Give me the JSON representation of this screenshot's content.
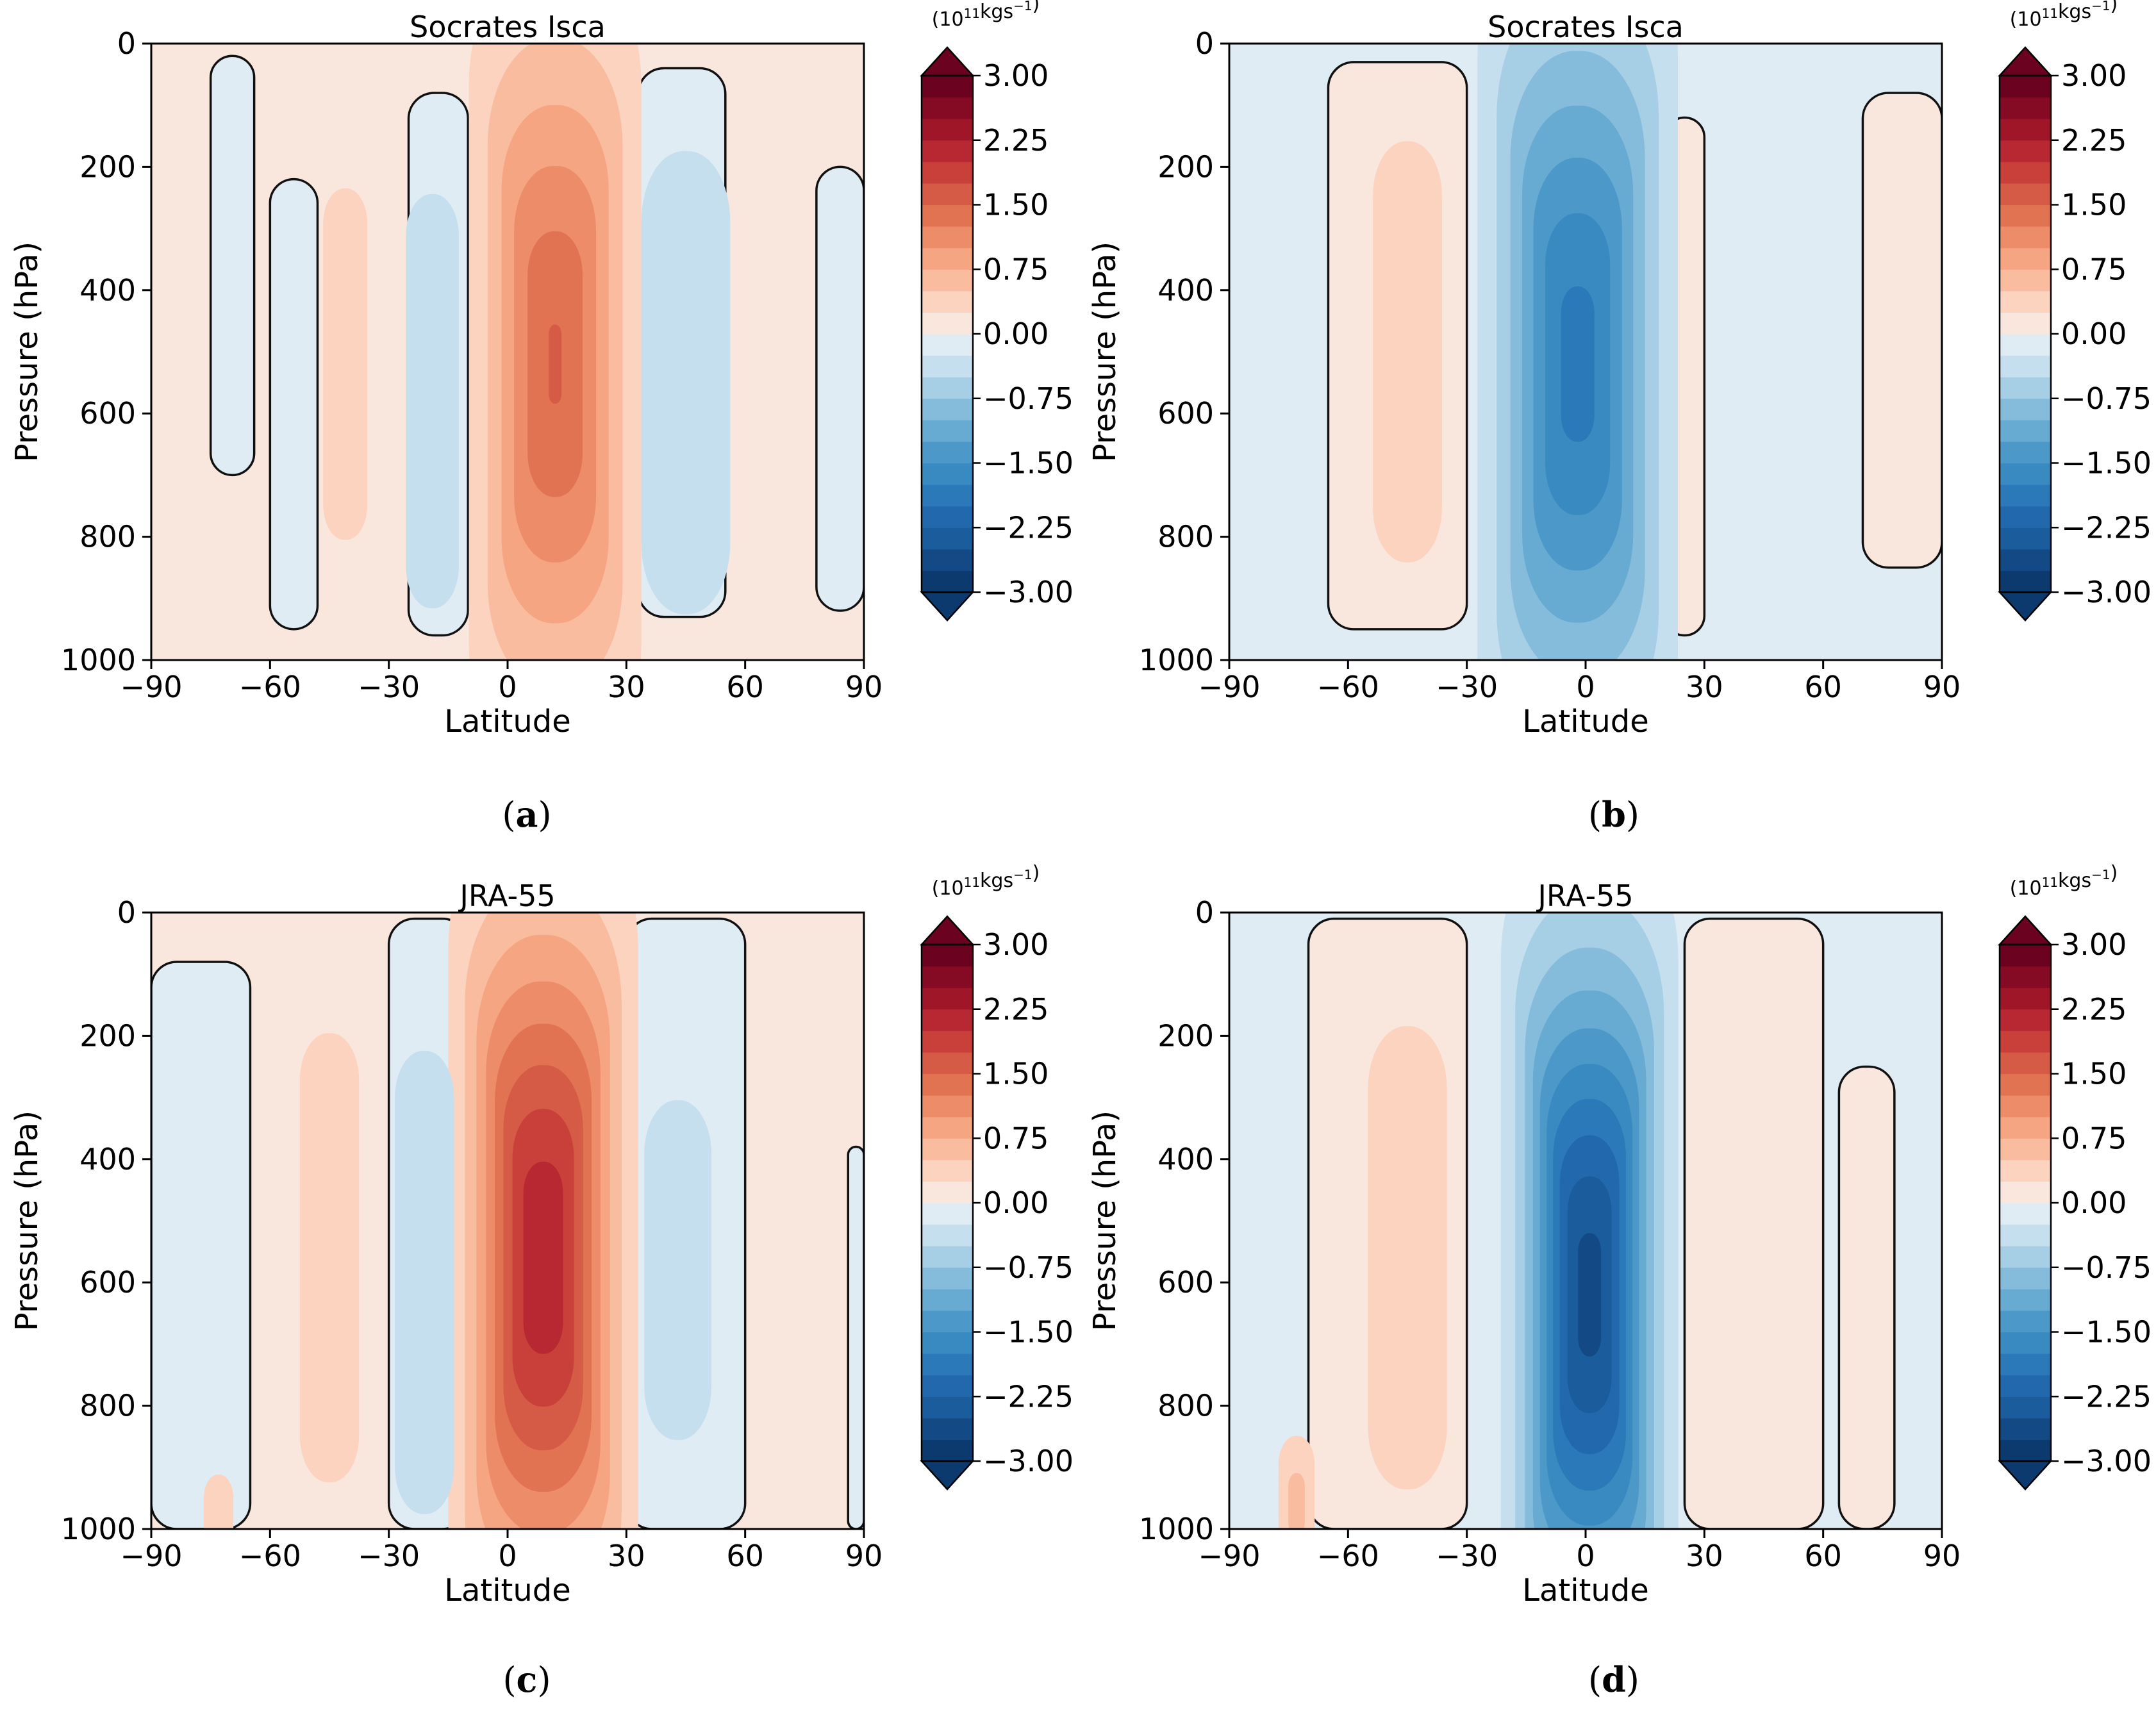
{
  "figure": {
    "colorbar": {
      "unit_base": "(10",
      "unit_exp": "11",
      "unit_mid": "kgs",
      "unit_sup": "−1",
      "unit_end": ")",
      "levels": [
        -3.0,
        -2.75,
        -2.5,
        -2.25,
        -2.0,
        -1.75,
        -1.5,
        -1.25,
        -1.0,
        -0.75,
        -0.5,
        -0.25,
        0.0,
        0.25,
        0.5,
        0.75,
        1.0,
        1.25,
        1.5,
        1.75,
        2.0,
        2.25,
        2.5,
        2.75,
        3.0
      ],
      "tick_values": [
        3.0,
        2.25,
        1.5,
        0.75,
        0.0,
        -0.75,
        -1.5,
        -2.25,
        -3.0
      ],
      "tick_labels": [
        "3.00",
        "2.25",
        "1.50",
        "0.75",
        "0.00",
        "−0.75",
        "−1.50",
        "−2.25",
        "−3.00"
      ],
      "colors": {
        "negative": [
          "#0d3a6e",
          "#134a86",
          "#1b5c9d",
          "#2268ad",
          "#2b79b9",
          "#3a8ac2",
          "#4c99c9",
          "#67aad2",
          "#85bcdc",
          "#a6cfe5",
          "#c5dfee",
          "#e0ecf4"
        ],
        "positive": [
          "#f9e6dc",
          "#fbd3bf",
          "#f9bc9f",
          "#f5a582",
          "#ed8c68",
          "#e27352",
          "#d65b46",
          "#c9403b",
          "#b72832",
          "#a01629",
          "#850b24",
          "#6a0220"
        ]
      }
    }
  },
  "chart_data": [
    {
      "id": "a",
      "type": "heatmap",
      "title": "Socrates Isca",
      "xlabel": "Latitude",
      "ylabel": "Pressure (hPa)",
      "xlim": [
        -90,
        90
      ],
      "ylim": [
        1000,
        0
      ],
      "xticks": [
        "−90",
        "−60",
        "−30",
        "0",
        "30",
        "60",
        "90"
      ],
      "xtick_values": [
        -90,
        -60,
        -30,
        0,
        30,
        60,
        90
      ],
      "yticks": [
        "0",
        "200",
        "400",
        "600",
        "800",
        "1000"
      ],
      "ytick_values": [
        0,
        200,
        400,
        600,
        800,
        1000
      ],
      "panel_label": "(a)",
      "background": 0.15,
      "cells": [
        {
          "lat": [
            -75,
            -64
          ],
          "p": [
            20,
            700
          ],
          "value": -0.15
        },
        {
          "lat": [
            -60,
            -48
          ],
          "p": [
            220,
            950
          ],
          "value": -0.15
        },
        {
          "lat": [
            -25,
            -10
          ],
          "p": [
            80,
            960
          ],
          "value": -0.15
        },
        {
          "lat": [
            33,
            55
          ],
          "p": [
            40,
            930
          ],
          "value": -0.15
        },
        {
          "lat": [
            78,
            90
          ],
          "p": [
            200,
            920
          ],
          "value": -0.15
        }
      ],
      "cores": [
        {
          "name": "tropical-cell",
          "lat": 12,
          "p": 520,
          "amplitude": 1.5,
          "lat_width": 10,
          "p_width": 340
        },
        {
          "name": "southern-positive",
          "lat": -41,
          "p": 520,
          "amplitude": 0.4,
          "lat_width": 5,
          "p_width": 280
        },
        {
          "name": "southern-negative",
          "lat": -19,
          "p": 580,
          "amplitude": -0.4,
          "lat_width": 6,
          "p_width": 330
        },
        {
          "name": "northern-negative",
          "lat": 45,
          "p": 550,
          "amplitude": -0.45,
          "lat_width": 9,
          "p_width": 330
        }
      ]
    },
    {
      "id": "b",
      "type": "heatmap",
      "title": "Socrates Isca",
      "xlabel": "Latitude",
      "ylabel": "Pressure (hPa)",
      "xlim": [
        -90,
        90
      ],
      "ylim": [
        1000,
        0
      ],
      "xticks": [
        "−90",
        "−60",
        "−30",
        "0",
        "30",
        "60",
        "90"
      ],
      "xtick_values": [
        -90,
        -60,
        -30,
        0,
        30,
        60,
        90
      ],
      "yticks": [
        "0",
        "200",
        "400",
        "600",
        "800",
        "1000"
      ],
      "ytick_values": [
        0,
        200,
        400,
        600,
        800,
        1000
      ],
      "panel_label": "(b)",
      "background": -0.15,
      "cells": [
        {
          "lat": [
            -65,
            -30
          ],
          "p": [
            30,
            950
          ],
          "value": 0.15
        },
        {
          "lat": [
            20,
            30
          ],
          "p": [
            120,
            960
          ],
          "value": 0.15
        },
        {
          "lat": [
            70,
            90
          ],
          "p": [
            80,
            850
          ],
          "value": 0.15
        }
      ],
      "cores": [
        {
          "name": "tropical-cell",
          "lat": -2,
          "p": 520,
          "amplitude": -1.85,
          "lat_width": 11,
          "p_width": 360
        },
        {
          "name": "southern-positive",
          "lat": -45,
          "p": 500,
          "amplitude": 0.45,
          "lat_width": 7,
          "p_width": 300
        }
      ]
    },
    {
      "id": "c",
      "type": "heatmap",
      "title": "JRA-55",
      "xlabel": "Latitude",
      "ylabel": "Pressure (hPa)",
      "xlim": [
        -90,
        90
      ],
      "ylim": [
        1000,
        0
      ],
      "xticks": [
        "−90",
        "−60",
        "−30",
        "0",
        "30",
        "60",
        "90"
      ],
      "xtick_values": [
        -90,
        -60,
        -30,
        0,
        30,
        60,
        90
      ],
      "yticks": [
        "0",
        "200",
        "400",
        "600",
        "800",
        "1000"
      ],
      "ytick_values": [
        0,
        200,
        400,
        600,
        800,
        1000
      ],
      "panel_label": "(c)",
      "background": 0.15,
      "cells": [
        {
          "lat": [
            -90,
            -65
          ],
          "p": [
            80,
            1000
          ],
          "value": -0.15
        },
        {
          "lat": [
            -30,
            -10
          ],
          "p": [
            10,
            1000
          ],
          "value": -0.15
        },
        {
          "lat": [
            30,
            60
          ],
          "p": [
            10,
            1000
          ],
          "value": -0.15
        },
        {
          "lat": [
            86,
            90
          ],
          "p": [
            380,
            1000
          ],
          "value": -0.15
        }
      ],
      "cores": [
        {
          "name": "tropical-cell",
          "lat": 9,
          "p": 560,
          "amplitude": 2.2,
          "lat_width": 10,
          "p_width": 340
        },
        {
          "name": "southern-positive",
          "lat": -45,
          "p": 560,
          "amplitude": 0.45,
          "lat_width": 6,
          "p_width": 320
        },
        {
          "name": "southern-negative",
          "lat": -21,
          "p": 600,
          "amplitude": -0.45,
          "lat_width": 6,
          "p_width": 330
        },
        {
          "name": "northern-negative",
          "lat": 43,
          "p": 580,
          "amplitude": -0.35,
          "lat_width": 9,
          "p_width": 320
        },
        {
          "name": "polar-positive",
          "lat": -73,
          "p": 980,
          "amplitude": 0.45,
          "lat_width": 3,
          "p_width": 60
        }
      ]
    },
    {
      "id": "d",
      "type": "heatmap",
      "title": "JRA-55",
      "xlabel": "Latitude",
      "ylabel": "Pressure (hPa)",
      "xlim": [
        -90,
        90
      ],
      "ylim": [
        1000,
        0
      ],
      "xticks": [
        "−90",
        "−60",
        "−30",
        "0",
        "30",
        "60",
        "90"
      ],
      "xtick_values": [
        -90,
        -60,
        -30,
        0,
        30,
        60,
        90
      ],
      "yticks": [
        "0",
        "200",
        "400",
        "600",
        "800",
        "1000"
      ],
      "ytick_values": [
        0,
        200,
        400,
        600,
        800,
        1000
      ],
      "panel_label": "(d)",
      "background": -0.15,
      "cells": [
        {
          "lat": [
            -70,
            -30
          ],
          "p": [
            10,
            1000
          ],
          "value": 0.15
        },
        {
          "lat": [
            25,
            60
          ],
          "p": [
            10,
            1000
          ],
          "value": 0.15
        },
        {
          "lat": [
            64,
            78
          ],
          "p": [
            250,
            1000
          ],
          "value": 0.15
        }
      ],
      "cores": [
        {
          "name": "tropical-cell",
          "lat": 1,
          "p": 620,
          "amplitude": -2.6,
          "lat_width": 9,
          "p_width": 340
        },
        {
          "name": "southern-positive",
          "lat": -45,
          "p": 560,
          "amplitude": 0.45,
          "lat_width": 8,
          "p_width": 330
        },
        {
          "name": "polar-positive",
          "lat": -73,
          "p": 960,
          "amplitude": 0.6,
          "lat_width": 3,
          "p_width": 80
        }
      ]
    }
  ]
}
